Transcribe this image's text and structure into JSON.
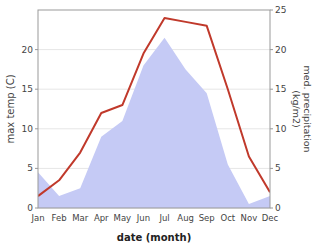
{
  "chart_data": {
    "type": "line",
    "categories": [
      "Jan",
      "Feb",
      "Mar",
      "Apr",
      "May",
      "Jun",
      "Jul",
      "Aug",
      "Sep",
      "Oct",
      "Nov",
      "Dec"
    ],
    "xlabel": "date (month)",
    "ylabel": "max temp (C)",
    "y2label": "med. precipitation\n(kg/m2)",
    "series": [
      {
        "type": "area",
        "axis": "y2",
        "color": "#c5caf5",
        "values": [
          4.5,
          1.5,
          2.5,
          9.0,
          11.0,
          18.0,
          21.5,
          17.5,
          14.5,
          5.5,
          0.5,
          1.5
        ]
      },
      {
        "type": "line",
        "color": "#c0392b",
        "values": [
          1.5,
          3.5,
          7.0,
          12.0,
          13.0,
          19.5,
          24.0,
          23.5,
          23.0,
          15.0,
          6.5,
          2.0
        ]
      }
    ],
    "ylim": [
      0,
      25
    ],
    "yticks": [
      0,
      5,
      10,
      15,
      20
    ],
    "y2lim": [
      0,
      25
    ],
    "y2ticks": [
      0,
      5,
      10,
      15,
      20,
      25
    ],
    "grid": true
  }
}
